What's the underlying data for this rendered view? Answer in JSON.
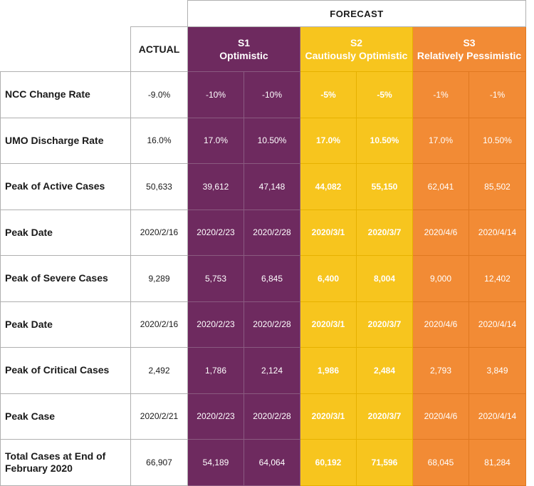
{
  "header": {
    "forecast": "FORECAST",
    "actual": "ACTUAL",
    "scenarios": [
      {
        "code": "S1",
        "name": "Optimistic"
      },
      {
        "code": "S2",
        "name": "Cautiously Optimistic"
      },
      {
        "code": "S3",
        "name": "Relatively Pessimistic"
      }
    ]
  },
  "colors": {
    "s1": "#6e2a5f",
    "s2": "#f7c51e",
    "s3": "#f28b35"
  },
  "rows": [
    {
      "label": "NCC Change Rate",
      "actual": "-9.0%",
      "values": [
        "-10%",
        "-10%",
        "-5%",
        "-5%",
        "-1%",
        "-1%"
      ]
    },
    {
      "label": "UMO Discharge Rate",
      "actual": "16.0%",
      "values": [
        "17.0%",
        "10.50%",
        "17.0%",
        "10.50%",
        "17.0%",
        "10.50%"
      ]
    },
    {
      "label": "Peak of Active Cases",
      "actual": "50,633",
      "values": [
        "39,612",
        "47,148",
        "44,082",
        "55,150",
        "62,041",
        "85,502"
      ]
    },
    {
      "label": "Peak Date",
      "actual": "2020/2/16",
      "values": [
        "2020/2/23",
        "2020/2/28",
        "2020/3/1",
        "2020/3/7",
        "2020/4/6",
        "2020/4/14"
      ]
    },
    {
      "label": "Peak of Severe Cases",
      "actual": "9,289",
      "values": [
        "5,753",
        "6,845",
        "6,400",
        "8,004",
        "9,000",
        "12,402"
      ]
    },
    {
      "label": "Peak Date",
      "actual": "2020/2/16",
      "values": [
        "2020/2/23",
        "2020/2/28",
        "2020/3/1",
        "2020/3/7",
        "2020/4/6",
        "2020/4/14"
      ]
    },
    {
      "label": "Peak of Critical Cases",
      "actual": "2,492",
      "values": [
        "1,786",
        "2,124",
        "1,986",
        "2,484",
        "2,793",
        "3,849"
      ]
    },
    {
      "label": "Peak Case",
      "actual": "2020/2/21",
      "values": [
        "2020/2/23",
        "2020/2/28",
        "2020/3/1",
        "2020/3/7",
        "2020/4/6",
        "2020/4/14"
      ]
    },
    {
      "label": "Total Cases at End of February 2020",
      "actual": "66,907",
      "values": [
        "54,189",
        "64,064",
        "60,192",
        "71,596",
        "68,045",
        "81,284"
      ]
    }
  ]
}
